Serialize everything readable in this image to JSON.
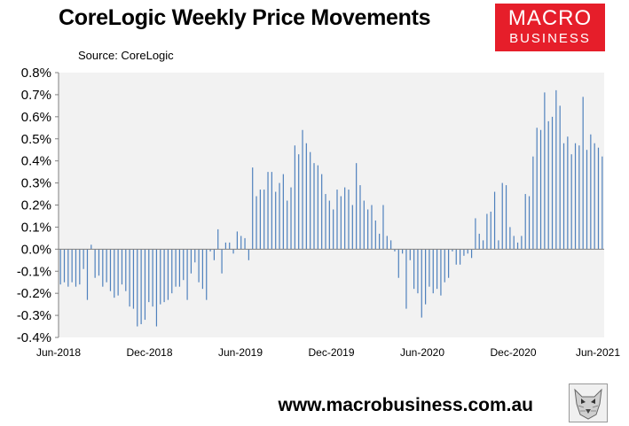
{
  "header": {
    "title": "CoreLogic Weekly Price Movements",
    "source": "Source: CoreLogic"
  },
  "logo": {
    "line1": "MACRO",
    "line2": "BUSINESS"
  },
  "footer": {
    "url": "www.macrobusiness.com.au"
  },
  "mascot": {
    "icon": "wolf-mascot-icon"
  },
  "colors": {
    "bar": "#4f81bd",
    "plot_bg": "#f2f2f2",
    "logo_bg": "#e61e2a"
  },
  "chart_data": {
    "type": "bar",
    "title": "",
    "xlabel": "",
    "ylabel": "",
    "ylim": [
      -0.4,
      0.8
    ],
    "yticks": [
      -0.4,
      -0.3,
      -0.2,
      -0.1,
      0.0,
      0.1,
      0.2,
      0.3,
      0.4,
      0.5,
      0.6,
      0.7,
      0.8
    ],
    "ytick_labels": [
      "-0.4%",
      "-0.3%",
      "-0.2%",
      "-0.1%",
      "0.0%",
      "0.1%",
      "0.2%",
      "0.3%",
      "0.4%",
      "0.5%",
      "0.6%",
      "0.7%",
      "0.8%"
    ],
    "xtick_labels": [
      "Jun-2018",
      "Dec-2018",
      "Jun-2019",
      "Dec-2019",
      "Jun-2020",
      "Dec-2020",
      "Jun-2021"
    ],
    "grid": false,
    "series": [
      {
        "values": [
          -0.16,
          -0.15,
          -0.17,
          -0.15,
          -0.17,
          -0.16,
          -0.09,
          -0.23,
          0.02,
          -0.13,
          -0.12,
          -0.17,
          -0.15,
          -0.19,
          -0.22,
          -0.21,
          -0.16,
          -0.19,
          -0.26,
          -0.27,
          -0.35,
          -0.34,
          -0.32,
          -0.24,
          -0.26,
          -0.35,
          -0.25,
          -0.24,
          -0.23,
          -0.2,
          -0.17,
          -0.17,
          -0.14,
          -0.23,
          -0.11,
          -0.06,
          -0.15,
          -0.18,
          -0.23,
          -0.01,
          -0.05,
          0.09,
          -0.11,
          0.03,
          0.03,
          -0.02,
          0.08,
          0.06,
          0.05,
          -0.05,
          0.37,
          0.24,
          0.27,
          0.27,
          0.35,
          0.35,
          0.26,
          0.3,
          0.34,
          0.22,
          0.28,
          0.47,
          0.43,
          0.54,
          0.48,
          0.44,
          0.39,
          0.38,
          0.34,
          0.25,
          0.22,
          0.18,
          0.27,
          0.24,
          0.28,
          0.27,
          0.2,
          0.39,
          0.29,
          0.22,
          0.18,
          0.2,
          0.13,
          0.07,
          0.2,
          0.06,
          0.04,
          -0.01,
          -0.13,
          -0.02,
          -0.27,
          -0.05,
          -0.18,
          -0.2,
          -0.31,
          -0.25,
          -0.17,
          -0.2,
          -0.18,
          -0.21,
          -0.15,
          -0.13,
          -0.01,
          -0.07,
          -0.07,
          -0.03,
          -0.02,
          -0.04,
          0.14,
          0.07,
          0.04,
          0.16,
          0.17,
          0.26,
          0.04,
          0.3,
          0.29,
          0.1,
          0.06,
          0.03,
          0.06,
          0.25,
          0.24,
          0.42,
          0.55,
          0.54,
          0.71,
          0.58,
          0.6,
          0.72,
          0.65,
          0.48,
          0.51,
          0.43,
          0.48,
          0.47,
          0.69,
          0.45,
          0.52,
          0.48,
          0.46,
          0.42
        ]
      }
    ]
  }
}
